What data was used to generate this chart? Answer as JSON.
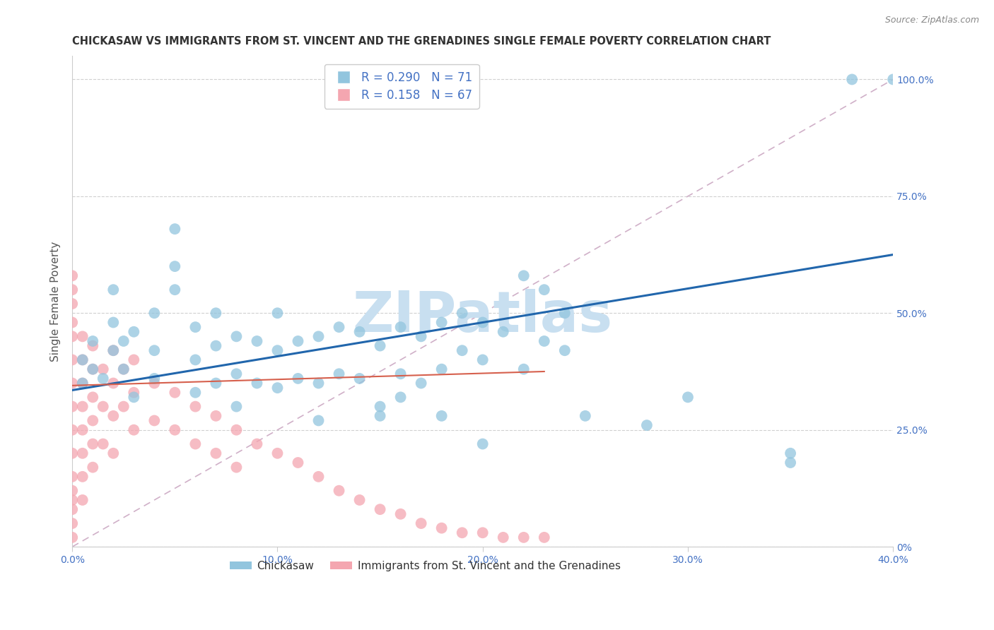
{
  "title": "CHICKASAW VS IMMIGRANTS FROM ST. VINCENT AND THE GRENADINES SINGLE FEMALE POVERTY CORRELATION CHART",
  "source": "Source: ZipAtlas.com",
  "ylabel": "Single Female Poverty",
  "xlim": [
    0.0,
    0.4
  ],
  "ylim": [
    0.0,
    1.05
  ],
  "ytick_values": [
    0.0,
    0.25,
    0.5,
    0.75,
    1.0
  ],
  "ytick_labels": [
    "0%",
    "25.0%",
    "50.0%",
    "75.0%",
    "100.0%"
  ],
  "xtick_vals": [
    0.0,
    0.1,
    0.2,
    0.3,
    0.4
  ],
  "xtick_labels": [
    "0.0%",
    "10.0%",
    "20.0%",
    "30.0%",
    "40.0%"
  ],
  "blue_color": "#92c5de",
  "pink_color": "#f4a6b0",
  "blue_line_color": "#2166ac",
  "pink_line_color": "#d6604d",
  "diag_color": "#d0b0c8",
  "grid_color": "#d0d0d0",
  "watermark": "ZIPatlas",
  "watermark_color": "#c8dff0",
  "R_blue": 0.29,
  "N_blue": 71,
  "R_pink": 0.158,
  "N_pink": 67,
  "legend_label_blue": "Chickasaw",
  "legend_label_pink": "Immigrants from St. Vincent and the Grenadines",
  "tick_color": "#4472c4",
  "blue_dots_x": [
    0.005,
    0.005,
    0.01,
    0.01,
    0.015,
    0.02,
    0.02,
    0.02,
    0.025,
    0.025,
    0.03,
    0.03,
    0.04,
    0.04,
    0.04,
    0.05,
    0.05,
    0.05,
    0.06,
    0.06,
    0.06,
    0.07,
    0.07,
    0.07,
    0.08,
    0.08,
    0.09,
    0.09,
    0.1,
    0.1,
    0.1,
    0.11,
    0.11,
    0.12,
    0.12,
    0.13,
    0.13,
    0.14,
    0.14,
    0.15,
    0.15,
    0.16,
    0.16,
    0.17,
    0.17,
    0.18,
    0.18,
    0.19,
    0.19,
    0.2,
    0.2,
    0.21,
    0.22,
    0.22,
    0.23,
    0.23,
    0.24,
    0.24,
    0.15,
    0.3,
    0.35,
    0.35,
    0.38,
    0.4,
    0.28,
    0.25,
    0.2,
    0.18,
    0.16,
    0.12,
    0.08
  ],
  "blue_dots_y": [
    0.35,
    0.4,
    0.38,
    0.44,
    0.36,
    0.42,
    0.48,
    0.55,
    0.38,
    0.44,
    0.32,
    0.46,
    0.36,
    0.42,
    0.5,
    0.55,
    0.6,
    0.68,
    0.33,
    0.4,
    0.47,
    0.35,
    0.43,
    0.5,
    0.37,
    0.45,
    0.35,
    0.44,
    0.34,
    0.42,
    0.5,
    0.36,
    0.44,
    0.35,
    0.45,
    0.37,
    0.47,
    0.36,
    0.46,
    0.3,
    0.43,
    0.37,
    0.47,
    0.35,
    0.45,
    0.38,
    0.48,
    0.42,
    0.5,
    0.4,
    0.48,
    0.46,
    0.38,
    0.58,
    0.44,
    0.55,
    0.42,
    0.5,
    0.28,
    0.32,
    0.2,
    0.18,
    1.0,
    1.0,
    0.26,
    0.28,
    0.22,
    0.28,
    0.32,
    0.27,
    0.3
  ],
  "pink_dots_x": [
    0.0,
    0.0,
    0.0,
    0.0,
    0.0,
    0.0,
    0.0,
    0.0,
    0.0,
    0.0,
    0.0,
    0.0,
    0.0,
    0.0,
    0.0,
    0.005,
    0.005,
    0.005,
    0.005,
    0.005,
    0.005,
    0.005,
    0.005,
    0.01,
    0.01,
    0.01,
    0.01,
    0.01,
    0.01,
    0.015,
    0.015,
    0.015,
    0.02,
    0.02,
    0.02,
    0.02,
    0.025,
    0.025,
    0.03,
    0.03,
    0.03,
    0.04,
    0.04,
    0.05,
    0.05,
    0.06,
    0.06,
    0.07,
    0.07,
    0.08,
    0.08,
    0.09,
    0.1,
    0.11,
    0.12,
    0.13,
    0.14,
    0.15,
    0.16,
    0.17,
    0.18,
    0.19,
    0.2,
    0.21,
    0.22,
    0.23,
    0.0
  ],
  "pink_dots_y": [
    0.35,
    0.4,
    0.45,
    0.3,
    0.25,
    0.2,
    0.15,
    0.1,
    0.05,
    0.02,
    0.48,
    0.52,
    0.55,
    0.08,
    0.12,
    0.35,
    0.4,
    0.45,
    0.3,
    0.25,
    0.2,
    0.15,
    0.1,
    0.38,
    0.43,
    0.32,
    0.27,
    0.22,
    0.17,
    0.38,
    0.3,
    0.22,
    0.42,
    0.35,
    0.28,
    0.2,
    0.38,
    0.3,
    0.4,
    0.33,
    0.25,
    0.35,
    0.27,
    0.33,
    0.25,
    0.3,
    0.22,
    0.28,
    0.2,
    0.25,
    0.17,
    0.22,
    0.2,
    0.18,
    0.15,
    0.12,
    0.1,
    0.08,
    0.07,
    0.05,
    0.04,
    0.03,
    0.03,
    0.02,
    0.02,
    0.02,
    0.58
  ],
  "background_color": "#ffffff",
  "title_fontsize": 10.5,
  "axis_label_fontsize": 11,
  "tick_fontsize": 10,
  "legend_fontsize": 12
}
